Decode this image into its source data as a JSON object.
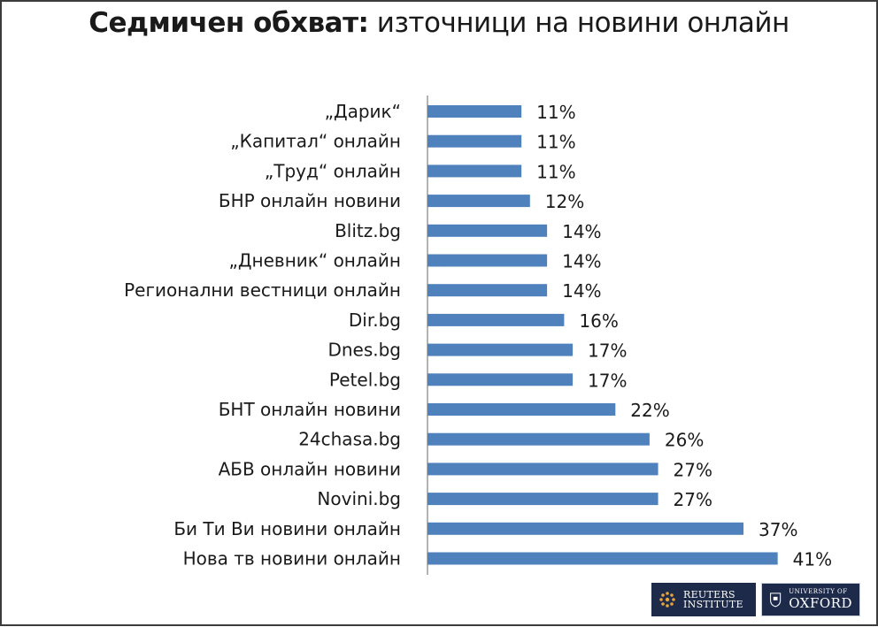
{
  "title_bold": "Седмичен обхват:",
  "title_rest": " източници на новини онлайн",
  "chart_data": {
    "type": "bar",
    "orientation": "horizontal",
    "title": "Седмичен обхват: източници на новини онлайн",
    "categories": [
      "„Дарик“",
      "„Капитал“ онлайн",
      "„Труд“ онлайн",
      "БНР онлайн новини",
      "Blitz.bg",
      "„Дневник“ онлайн",
      "Регионални вестници онлайн",
      "Dir.bg",
      "Dnes.bg",
      "Petel.bg",
      "БНТ онлайн новини",
      "24chasa.bg",
      "АБВ онлайн новини",
      "Novini.bg",
      "Би Ти Ви новини онлайн",
      "Нова тв новини онлайн"
    ],
    "values": [
      11,
      11,
      11,
      12,
      14,
      14,
      14,
      16,
      17,
      17,
      22,
      26,
      27,
      27,
      37,
      41
    ],
    "labels": [
      "11%",
      "11%",
      "11%",
      "12%",
      "14%",
      "14%",
      "14%",
      "16%",
      "17%",
      "17%",
      "22%",
      "26%",
      "27%",
      "27%",
      "37%",
      "41%"
    ],
    "unit": "%",
    "bar_color": "#4f81bd",
    "grid": false,
    "legend": "none"
  },
  "logos": {
    "reuters_line1": "REUTERS",
    "reuters_line2": "INSTITUTE",
    "oxford_line1": "UNIVERSITY OF",
    "oxford_line2": "OXFORD"
  }
}
